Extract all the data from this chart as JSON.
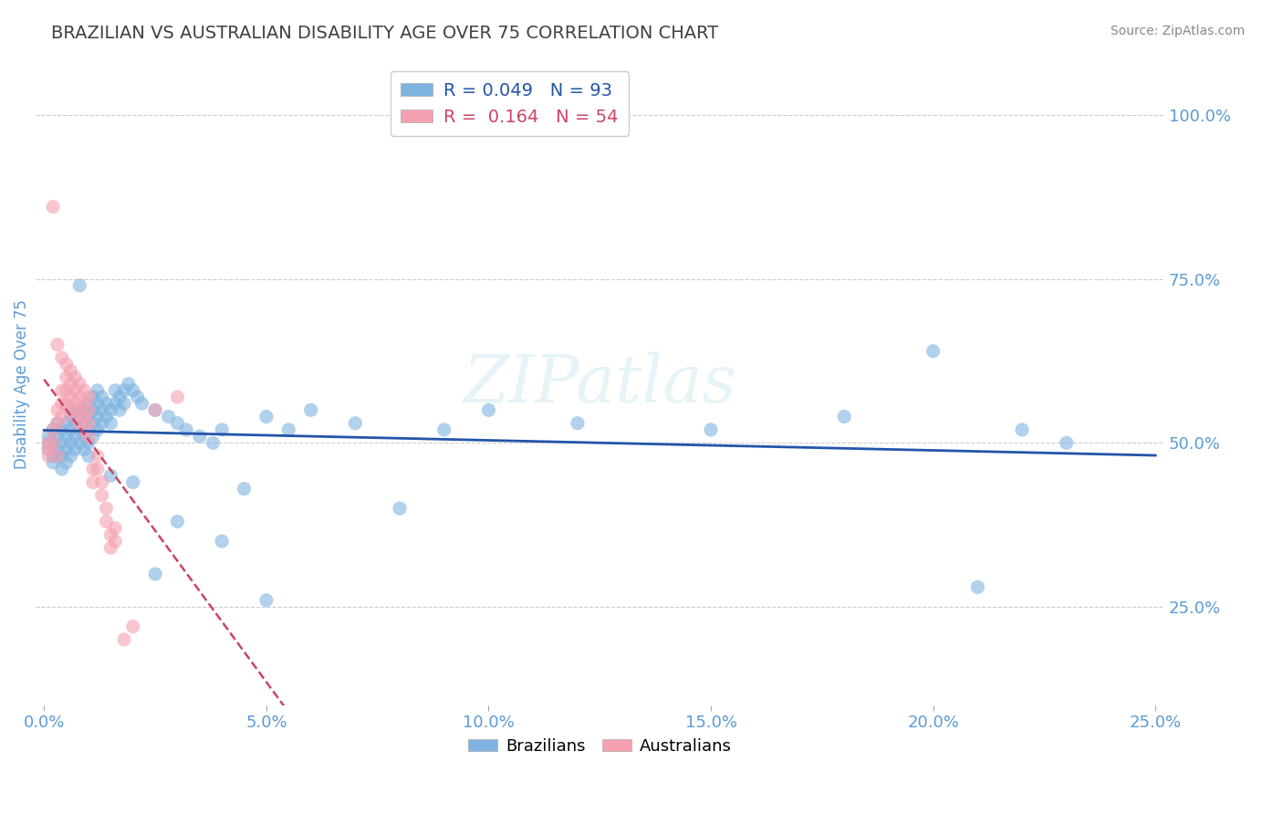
{
  "title": "BRAZILIAN VS AUSTRALIAN DISABILITY AGE OVER 75 CORRELATION CHART",
  "source": "Source: ZipAtlas.com",
  "ylabel": "Disability Age Over 75",
  "xlim": [
    -0.002,
    0.252
  ],
  "ylim": [
    0.1,
    1.08
  ],
  "xticks": [
    0.0,
    0.05,
    0.1,
    0.15,
    0.2,
    0.25
  ],
  "xticklabels": [
    "0.0%",
    "5.0%",
    "10.0%",
    "15.0%",
    "20.0%",
    "25.0%"
  ],
  "yticks": [
    0.25,
    0.5,
    0.75,
    1.0
  ],
  "yticklabels": [
    "25.0%",
    "50.0%",
    "75.0%",
    "100.0%"
  ],
  "brazil_color": "#7eb3e0",
  "australia_color": "#f4a0b0",
  "brazil_R": 0.049,
  "brazil_N": 93,
  "australia_R": 0.164,
  "australia_N": 54,
  "brazil_line_color": "#2255aa",
  "australia_line_color": "#cc4466",
  "background_color": "#ffffff",
  "grid_color": "#cccccc",
  "title_color": "#404040",
  "axis_color": "#5b9bd5",
  "watermark": "ZIPatlas",
  "brazil_points": [
    [
      0.001,
      0.5
    ],
    [
      0.001,
      0.49
    ],
    [
      0.001,
      0.51
    ],
    [
      0.002,
      0.5
    ],
    [
      0.002,
      0.52
    ],
    [
      0.002,
      0.48
    ],
    [
      0.002,
      0.47
    ],
    [
      0.003,
      0.51
    ],
    [
      0.003,
      0.49
    ],
    [
      0.003,
      0.53
    ],
    [
      0.003,
      0.48
    ],
    [
      0.004,
      0.52
    ],
    [
      0.004,
      0.5
    ],
    [
      0.004,
      0.48
    ],
    [
      0.004,
      0.46
    ],
    [
      0.005,
      0.53
    ],
    [
      0.005,
      0.51
    ],
    [
      0.005,
      0.49
    ],
    [
      0.005,
      0.47
    ],
    [
      0.006,
      0.54
    ],
    [
      0.006,
      0.52
    ],
    [
      0.006,
      0.5
    ],
    [
      0.006,
      0.48
    ],
    [
      0.007,
      0.55
    ],
    [
      0.007,
      0.53
    ],
    [
      0.007,
      0.51
    ],
    [
      0.007,
      0.49
    ],
    [
      0.008,
      0.74
    ],
    [
      0.008,
      0.54
    ],
    [
      0.008,
      0.52
    ],
    [
      0.008,
      0.5
    ],
    [
      0.009,
      0.55
    ],
    [
      0.009,
      0.53
    ],
    [
      0.009,
      0.51
    ],
    [
      0.009,
      0.49
    ],
    [
      0.01,
      0.56
    ],
    [
      0.01,
      0.54
    ],
    [
      0.01,
      0.52
    ],
    [
      0.01,
      0.5
    ],
    [
      0.01,
      0.48
    ],
    [
      0.011,
      0.57
    ],
    [
      0.011,
      0.55
    ],
    [
      0.011,
      0.53
    ],
    [
      0.011,
      0.51
    ],
    [
      0.012,
      0.58
    ],
    [
      0.012,
      0.56
    ],
    [
      0.012,
      0.54
    ],
    [
      0.012,
      0.52
    ],
    [
      0.013,
      0.57
    ],
    [
      0.013,
      0.55
    ],
    [
      0.013,
      0.53
    ],
    [
      0.014,
      0.56
    ],
    [
      0.014,
      0.54
    ],
    [
      0.015,
      0.55
    ],
    [
      0.015,
      0.53
    ],
    [
      0.016,
      0.58
    ],
    [
      0.016,
      0.56
    ],
    [
      0.017,
      0.57
    ],
    [
      0.017,
      0.55
    ],
    [
      0.018,
      0.58
    ],
    [
      0.018,
      0.56
    ],
    [
      0.019,
      0.59
    ],
    [
      0.02,
      0.58
    ],
    [
      0.02,
      0.44
    ],
    [
      0.021,
      0.57
    ],
    [
      0.022,
      0.56
    ],
    [
      0.025,
      0.55
    ],
    [
      0.028,
      0.54
    ],
    [
      0.03,
      0.53
    ],
    [
      0.032,
      0.52
    ],
    [
      0.035,
      0.51
    ],
    [
      0.038,
      0.5
    ],
    [
      0.04,
      0.52
    ],
    [
      0.045,
      0.43
    ],
    [
      0.05,
      0.54
    ],
    [
      0.055,
      0.52
    ],
    [
      0.06,
      0.55
    ],
    [
      0.07,
      0.53
    ],
    [
      0.08,
      0.4
    ],
    [
      0.09,
      0.52
    ],
    [
      0.1,
      0.55
    ],
    [
      0.12,
      0.53
    ],
    [
      0.15,
      0.52
    ],
    [
      0.18,
      0.54
    ],
    [
      0.2,
      0.64
    ],
    [
      0.21,
      0.28
    ],
    [
      0.22,
      0.52
    ],
    [
      0.23,
      0.5
    ],
    [
      0.03,
      0.38
    ],
    [
      0.025,
      0.3
    ],
    [
      0.015,
      0.45
    ],
    [
      0.04,
      0.35
    ],
    [
      0.05,
      0.26
    ]
  ],
  "australia_points": [
    [
      0.001,
      0.5
    ],
    [
      0.001,
      0.49
    ],
    [
      0.001,
      0.48
    ],
    [
      0.002,
      0.86
    ],
    [
      0.002,
      0.52
    ],
    [
      0.002,
      0.5
    ],
    [
      0.003,
      0.65
    ],
    [
      0.003,
      0.55
    ],
    [
      0.003,
      0.53
    ],
    [
      0.003,
      0.48
    ],
    [
      0.004,
      0.63
    ],
    [
      0.004,
      0.58
    ],
    [
      0.004,
      0.56
    ],
    [
      0.004,
      0.54
    ],
    [
      0.005,
      0.62
    ],
    [
      0.005,
      0.6
    ],
    [
      0.005,
      0.58
    ],
    [
      0.005,
      0.56
    ],
    [
      0.006,
      0.61
    ],
    [
      0.006,
      0.59
    ],
    [
      0.006,
      0.57
    ],
    [
      0.006,
      0.55
    ],
    [
      0.007,
      0.6
    ],
    [
      0.007,
      0.58
    ],
    [
      0.007,
      0.56
    ],
    [
      0.007,
      0.54
    ],
    [
      0.008,
      0.59
    ],
    [
      0.008,
      0.57
    ],
    [
      0.008,
      0.55
    ],
    [
      0.008,
      0.53
    ],
    [
      0.009,
      0.58
    ],
    [
      0.009,
      0.56
    ],
    [
      0.009,
      0.54
    ],
    [
      0.009,
      0.52
    ],
    [
      0.01,
      0.57
    ],
    [
      0.01,
      0.55
    ],
    [
      0.01,
      0.53
    ],
    [
      0.01,
      0.51
    ],
    [
      0.011,
      0.46
    ],
    [
      0.011,
      0.44
    ],
    [
      0.012,
      0.48
    ],
    [
      0.012,
      0.46
    ],
    [
      0.013,
      0.44
    ],
    [
      0.013,
      0.42
    ],
    [
      0.014,
      0.4
    ],
    [
      0.014,
      0.38
    ],
    [
      0.015,
      0.36
    ],
    [
      0.015,
      0.34
    ],
    [
      0.016,
      0.37
    ],
    [
      0.016,
      0.35
    ],
    [
      0.018,
      0.2
    ],
    [
      0.02,
      0.22
    ],
    [
      0.025,
      0.55
    ],
    [
      0.03,
      0.57
    ]
  ]
}
